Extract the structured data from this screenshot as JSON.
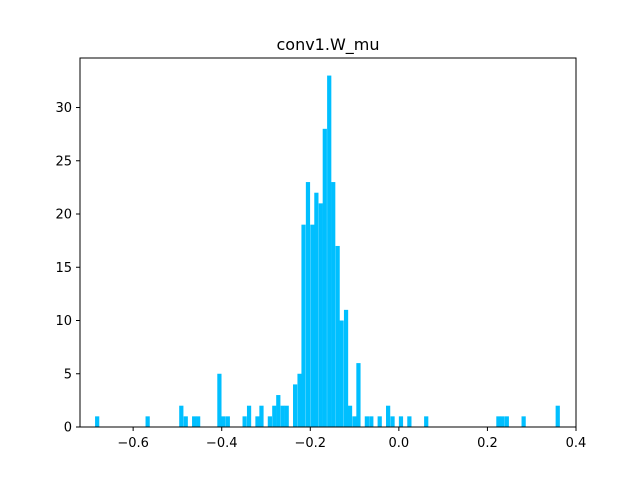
{
  "chart_data": {
    "type": "bar",
    "title": "conv1.W_mu",
    "xlabel": "",
    "ylabel": "",
    "xlim": [
      -0.72,
      0.4
    ],
    "ylim": [
      0,
      34.65
    ],
    "xticks": [
      -0.6,
      -0.4,
      -0.2,
      0.0,
      0.2,
      0.4
    ],
    "xtick_labels": [
      "−0.6",
      "−0.4",
      "−0.2",
      "0.0",
      "0.2",
      "0.4"
    ],
    "yticks": [
      0,
      5,
      10,
      15,
      20,
      25,
      30
    ],
    "ytick_labels": [
      "0",
      "5",
      "10",
      "15",
      "20",
      "25",
      "30"
    ],
    "bar_color": "#00bfff",
    "bin_width": 0.00954,
    "bins": [
      {
        "x": -0.686,
        "count": 1
      },
      {
        "x": -0.572,
        "count": 1
      },
      {
        "x": -0.496,
        "count": 2
      },
      {
        "x": -0.486,
        "count": 1
      },
      {
        "x": -0.467,
        "count": 1
      },
      {
        "x": -0.458,
        "count": 1
      },
      {
        "x": -0.41,
        "count": 5
      },
      {
        "x": -0.401,
        "count": 1
      },
      {
        "x": -0.391,
        "count": 1
      },
      {
        "x": -0.353,
        "count": 1
      },
      {
        "x": -0.343,
        "count": 2
      },
      {
        "x": -0.324,
        "count": 1
      },
      {
        "x": -0.315,
        "count": 2
      },
      {
        "x": -0.296,
        "count": 1
      },
      {
        "x": -0.286,
        "count": 2
      },
      {
        "x": -0.277,
        "count": 3
      },
      {
        "x": -0.267,
        "count": 2
      },
      {
        "x": -0.258,
        "count": 2
      },
      {
        "x": -0.239,
        "count": 4
      },
      {
        "x": -0.229,
        "count": 5
      },
      {
        "x": -0.22,
        "count": 19
      },
      {
        "x": -0.21,
        "count": 23
      },
      {
        "x": -0.2,
        "count": 19
      },
      {
        "x": -0.191,
        "count": 22
      },
      {
        "x": -0.181,
        "count": 21
      },
      {
        "x": -0.172,
        "count": 28
      },
      {
        "x": -0.162,
        "count": 33
      },
      {
        "x": -0.153,
        "count": 23
      },
      {
        "x": -0.143,
        "count": 17
      },
      {
        "x": -0.134,
        "count": 10
      },
      {
        "x": -0.124,
        "count": 11
      },
      {
        "x": -0.115,
        "count": 2
      },
      {
        "x": -0.105,
        "count": 1
      },
      {
        "x": -0.096,
        "count": 6
      },
      {
        "x": -0.077,
        "count": 1
      },
      {
        "x": -0.067,
        "count": 1
      },
      {
        "x": -0.048,
        "count": 1
      },
      {
        "x": -0.029,
        "count": 2
      },
      {
        "x": -0.019,
        "count": 1
      },
      {
        "x": 0.0,
        "count": 1
      },
      {
        "x": 0.019,
        "count": 1
      },
      {
        "x": 0.057,
        "count": 1
      },
      {
        "x": 0.22,
        "count": 1
      },
      {
        "x": 0.229,
        "count": 1
      },
      {
        "x": 0.239,
        "count": 1
      },
      {
        "x": 0.277,
        "count": 1
      },
      {
        "x": 0.354,
        "count": 2
      }
    ]
  }
}
